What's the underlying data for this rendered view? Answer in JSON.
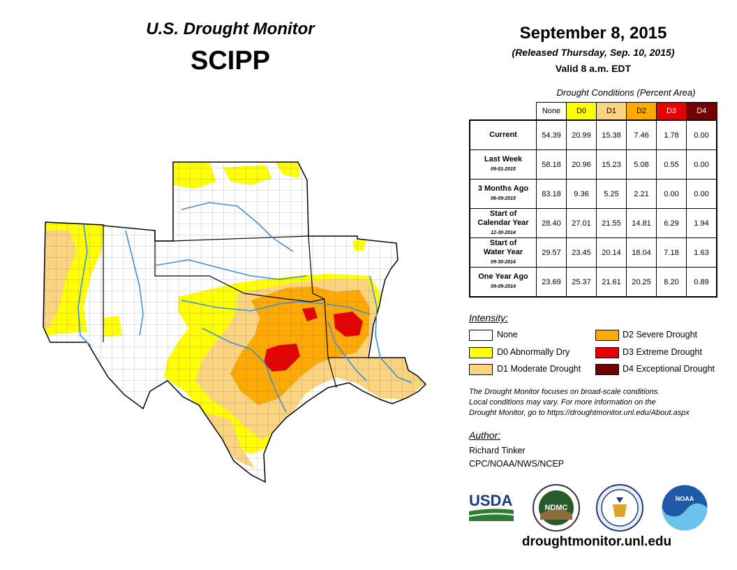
{
  "header": {
    "title": "U.S. Drought Monitor",
    "region": "SCIPP",
    "date": "September 8, 2015",
    "released": "(Released Thursday, Sep. 10, 2015)",
    "valid": "Valid 8 a.m. EDT"
  },
  "table": {
    "caption": "Drought Conditions (Percent Area)",
    "columns": [
      "None",
      "D0",
      "D1",
      "D2",
      "D3",
      "D4"
    ],
    "column_colors": [
      "#ffffff",
      "#ffff00",
      "#fcd37f",
      "#ffaa00",
      "#e60000",
      "#730000"
    ],
    "rows": [
      {
        "label": "Current",
        "label2": "",
        "date": "",
        "values": [
          "54.39",
          "20.99",
          "15.38",
          "7.46",
          "1.78",
          "0.00"
        ]
      },
      {
        "label": "Last Week",
        "label2": "",
        "date": "09-01-2015",
        "values": [
          "58.18",
          "20.96",
          "15.23",
          "5.08",
          "0.55",
          "0.00"
        ]
      },
      {
        "label": "3 Months Ago",
        "label2": "",
        "date": "06-09-2015",
        "values": [
          "83.18",
          "9.36",
          "5.25",
          "2.21",
          "0.00",
          "0.00"
        ]
      },
      {
        "label": "Start of",
        "label2": "Calendar Year",
        "date": "12-30-2014",
        "values": [
          "28.40",
          "27.01",
          "21.55",
          "14.81",
          "6.29",
          "1.94"
        ]
      },
      {
        "label": "Start of",
        "label2": "Water Year",
        "date": "09-30-2014",
        "values": [
          "29.57",
          "23.45",
          "20.14",
          "18.04",
          "7.18",
          "1.63"
        ]
      },
      {
        "label": "One Year Ago",
        "label2": "",
        "date": "09-09-2014",
        "values": [
          "23.69",
          "25.37",
          "21.61",
          "20.25",
          "8.20",
          "0.89"
        ]
      }
    ]
  },
  "legend": {
    "title": "Intensity:",
    "items": [
      {
        "label": "None",
        "color": "#ffffff"
      },
      {
        "label": "D0 Abnormally Dry",
        "color": "#ffff00"
      },
      {
        "label": "D1 Moderate Drought",
        "color": "#fcd37f"
      },
      {
        "label": "D2 Severe Drought",
        "color": "#ffaa00"
      },
      {
        "label": "D3 Extreme Drought",
        "color": "#e60000"
      },
      {
        "label": "D4 Exceptional Drought",
        "color": "#730000"
      }
    ]
  },
  "note": {
    "line1": "The Drought Monitor focuses on broad-scale conditions.",
    "line2": "Local conditions may vary. For more information on the",
    "line3": "Drought Monitor, go to https://droughtmonitor.unl.edu/About.aspx"
  },
  "author": {
    "title": "Author:",
    "name": "Richard Tinker",
    "org": "CPC/NOAA/NWS/NCEP"
  },
  "logos": {
    "usda": "USDA",
    "ndmc": "NDMC",
    "noaa": "NOAA"
  },
  "footer": {
    "site": "droughtmonitor.unl.edu"
  },
  "map": {
    "states": [
      "New Mexico",
      "Oklahoma",
      "Kansas",
      "Texas",
      "Arkansas",
      "Louisiana"
    ],
    "colors": {
      "none": "#ffffff",
      "d0": "#ffff00",
      "d1": "#fcd37f",
      "d2": "#ffaa00",
      "d3": "#e60000",
      "water": "#3e8ede"
    }
  }
}
